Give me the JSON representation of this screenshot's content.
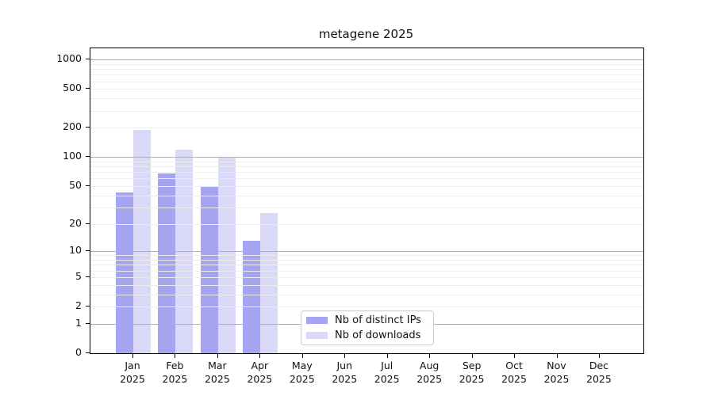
{
  "chart_data": {
    "type": "bar",
    "title": "metagene 2025",
    "x_categories": [
      "Jan",
      "Feb",
      "Mar",
      "Apr",
      "May",
      "Jun",
      "Jul",
      "Aug",
      "Sep",
      "Oct",
      "Nov",
      "Dec"
    ],
    "x_year": "2025",
    "series": [
      {
        "name": "Nb of distinct IPs",
        "color": "#a4a4f0",
        "values": [
          43,
          68,
          50,
          13,
          0,
          0,
          0,
          0,
          0,
          0,
          0,
          0
        ]
      },
      {
        "name": "Nb of downloads",
        "color": "#dadaf8",
        "values": [
          190,
          120,
          100,
          26,
          0,
          0,
          0,
          0,
          0,
          0,
          0,
          0
        ]
      }
    ],
    "y_scale": "log1p",
    "y_ticks": [
      0,
      1,
      2,
      5,
      10,
      20,
      50,
      100,
      200,
      500,
      1000
    ],
    "y_minor_ticks": [
      2,
      3,
      4,
      5,
      6,
      7,
      8,
      9,
      20,
      30,
      40,
      50,
      60,
      70,
      80,
      90,
      200,
      300,
      400,
      500,
      600,
      700,
      800,
      900
    ],
    "y_major_gridlines": [
      1,
      10,
      100,
      1000
    ],
    "ylim": [
      0,
      1350
    ],
    "grid": true,
    "legend": {
      "position": "lower-center",
      "entries": [
        "Nb of distinct IPs",
        "Nb of downloads"
      ]
    }
  },
  "colors": {
    "background": "#ffffff",
    "axis": "#000000",
    "major_grid": "#b0b0b0",
    "minor_grid": "#ececec",
    "legend_border": "#cccccc",
    "bar_dark": "#a4a4f0",
    "bar_light": "#dadaf8"
  }
}
